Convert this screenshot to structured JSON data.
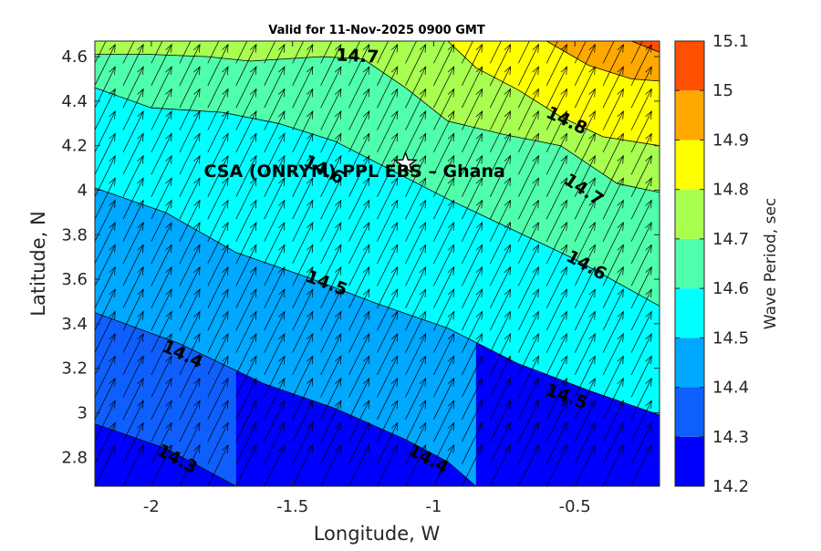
{
  "chart_data": {
    "type": "contour",
    "title": "Valid for 11-Nov-2025 0900 GMT",
    "xlabel": "Longitude, W",
    "ylabel": "Latitude, N",
    "xlim": [
      -2.2,
      -0.2
    ],
    "ylim": [
      2.67,
      4.67
    ],
    "x_ticks": [
      -2,
      -1.5,
      -1,
      -0.5
    ],
    "x_tick_labels": [
      "-2",
      "-1.5",
      "-1",
      "-0.5"
    ],
    "y_ticks": [
      2.8,
      3.0,
      3.2,
      3.4,
      3.6,
      3.8,
      4.0,
      4.2,
      4.4,
      4.6
    ],
    "y_tick_labels": [
      "2.8",
      "3",
      "3.2",
      "3.4",
      "3.6",
      "3.8",
      "4",
      "4.2",
      "4.4",
      "4.6"
    ],
    "colorbar": {
      "label": "Wave Period, sec",
      "ticks": [
        14.2,
        14.3,
        14.4,
        14.5,
        14.6,
        14.7,
        14.8,
        14.9,
        15.0,
        15.1
      ],
      "tick_labels": [
        "14.2",
        "14.3",
        "14.4",
        "14.5",
        "14.6",
        "14.7",
        "14.8",
        "14.9",
        "15",
        "15.1"
      ],
      "colors": [
        "#0000ff",
        "#0f5fff",
        "#00a8ff",
        "#00ffff",
        "#50ffac",
        "#a8ff50",
        "#ffff00",
        "#ffa800",
        "#ff5000"
      ]
    },
    "contour_levels": [
      {
        "level": 14.3,
        "label": "14.3",
        "points": [
          [
            -2.2,
            2.95
          ],
          [
            -1.95,
            2.84
          ],
          [
            -1.7,
            2.67
          ]
        ],
        "labels_at": [
          [
            -1.91,
            2.79
          ]
        ]
      },
      {
        "level": 14.4,
        "label": "14.4",
        "points": [
          [
            -2.2,
            3.45
          ],
          [
            -1.9,
            3.31
          ],
          [
            -1.6,
            3.13
          ],
          [
            -1.35,
            3.02
          ],
          [
            -1.1,
            2.88
          ],
          [
            -0.95,
            2.78
          ],
          [
            -0.85,
            2.67
          ]
        ],
        "labels_at": [
          [
            -1.89,
            3.26
          ],
          [
            -1.02,
            2.79
          ]
        ]
      },
      {
        "level": 14.5,
        "label": "14.5",
        "points": [
          [
            -2.2,
            4.01
          ],
          [
            -1.95,
            3.9
          ],
          [
            -1.7,
            3.72
          ],
          [
            -1.45,
            3.61
          ],
          [
            -1.2,
            3.49
          ],
          [
            -0.95,
            3.38
          ],
          [
            -0.7,
            3.22
          ],
          [
            -0.45,
            3.1
          ],
          [
            -0.2,
            2.99
          ]
        ],
        "labels_at": [
          [
            -1.38,
            3.58
          ],
          [
            -0.53,
            3.07
          ]
        ]
      },
      {
        "level": 14.6,
        "label": "14.6",
        "points": [
          [
            -2.2,
            4.46
          ],
          [
            -2.0,
            4.37
          ],
          [
            -1.75,
            4.35
          ],
          [
            -1.55,
            4.3
          ],
          [
            -1.35,
            4.22
          ],
          [
            -1.15,
            4.09
          ],
          [
            -0.95,
            3.96
          ],
          [
            -0.75,
            3.84
          ],
          [
            -0.5,
            3.69
          ],
          [
            -0.2,
            3.48
          ]
        ],
        "labels_at": [
          [
            -1.39,
            4.09
          ],
          [
            -0.46,
            3.66
          ]
        ]
      },
      {
        "level": 14.7,
        "label": "14.7",
        "points": [
          [
            -2.2,
            4.61
          ],
          [
            -2.0,
            4.61
          ],
          [
            -1.8,
            4.6
          ],
          [
            -1.65,
            4.58
          ],
          [
            -1.4,
            4.6
          ],
          [
            -1.25,
            4.59
          ],
          [
            -1.1,
            4.46
          ],
          [
            -0.95,
            4.31
          ],
          [
            -0.75,
            4.25
          ],
          [
            -0.55,
            4.2
          ],
          [
            -0.35,
            4.03
          ],
          [
            -0.2,
            3.99
          ]
        ],
        "labels_at": [
          [
            -1.27,
            4.6
          ],
          [
            -0.47,
            4.0
          ]
        ]
      },
      {
        "level": 14.8,
        "label": "14.8",
        "points": [
          [
            -0.95,
            4.67
          ],
          [
            -0.85,
            4.55
          ],
          [
            -0.7,
            4.45
          ],
          [
            -0.55,
            4.33
          ],
          [
            -0.4,
            4.24
          ],
          [
            -0.2,
            4.2
          ]
        ],
        "labels_at": [
          [
            -0.53,
            4.31
          ]
        ]
      },
      {
        "level": 14.9,
        "label": "",
        "points": [
          [
            -0.6,
            4.67
          ],
          [
            -0.45,
            4.56
          ],
          [
            -0.3,
            4.5
          ],
          [
            -0.2,
            4.49
          ]
        ],
        "labels_at": []
      },
      {
        "level": 15.0,
        "label": "",
        "points": [
          [
            -0.3,
            4.67
          ],
          [
            -0.2,
            4.62
          ]
        ],
        "labels_at": []
      }
    ],
    "direction_arrows": {
      "lon_start": -2.2,
      "lon_step": 0.1,
      "lon_count": 20,
      "lat_start": 2.67,
      "lat_step": 0.1,
      "lat_count": 20,
      "dx_deg": 0.072,
      "dy_deg": 0.185
    },
    "station": {
      "name": "CSA (ONRYM) PPL EBS  – Ghana",
      "lon": -1.1,
      "lat": 4.12,
      "label_lon": -1.28,
      "label_lat": 4.06
    }
  }
}
